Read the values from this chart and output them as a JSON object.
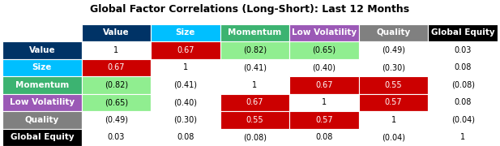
{
  "title": "Global Factor Correlations (Long-Short): Last 12 Months",
  "col_headers": [
    "Value",
    "Size",
    "Momentum",
    "Low Volatility",
    "Quality",
    "Global Equity"
  ],
  "col_header_colors": [
    "#003366",
    "#00BFFF",
    "#3CB371",
    "#9B59B6",
    "#808080",
    "#000000"
  ],
  "col_header_text_colors": [
    "#FFFFFF",
    "#FFFFFF",
    "#FFFFFF",
    "#FFFFFF",
    "#FFFFFF",
    "#FFFFFF"
  ],
  "row_headers": [
    "Value",
    "Size",
    "Momentum",
    "Low Volatility",
    "Quality",
    "Global Equity"
  ],
  "row_header_colors": [
    "#003366",
    "#00BFFF",
    "#3CB371",
    "#9B59B6",
    "#808080",
    "#000000"
  ],
  "row_header_text_colors": [
    "#FFFFFF",
    "#FFFFFF",
    "#FFFFFF",
    "#FFFFFF",
    "#FFFFFF",
    "#FFFFFF"
  ],
  "cell_values": [
    [
      "1",
      "0.67",
      "(0.82)",
      "(0.65)",
      "(0.49)",
      "0.03"
    ],
    [
      "0.67",
      "1",
      "(0.41)",
      "(0.40)",
      "(0.30)",
      "0.08"
    ],
    [
      "(0.82)",
      "(0.41)",
      "1",
      "0.67",
      "0.55",
      "(0.08)"
    ],
    [
      "(0.65)",
      "(0.40)",
      "0.67",
      "1",
      "0.57",
      "0.08"
    ],
    [
      "(0.49)",
      "(0.30)",
      "0.55",
      "0.57",
      "1",
      "(0.04)"
    ],
    [
      "0.03",
      "0.08",
      "(0.08)",
      "0.08",
      "(0.04)",
      "1"
    ]
  ],
  "cell_bg_colors": [
    [
      "#FFFFFF",
      "#CC0000",
      "#90EE90",
      "#90EE90",
      "#FFFFFF",
      "#FFFFFF"
    ],
    [
      "#CC0000",
      "#FFFFFF",
      "#FFFFFF",
      "#FFFFFF",
      "#FFFFFF",
      "#FFFFFF"
    ],
    [
      "#90EE90",
      "#FFFFFF",
      "#FFFFFF",
      "#CC0000",
      "#CC0000",
      "#FFFFFF"
    ],
    [
      "#90EE90",
      "#FFFFFF",
      "#CC0000",
      "#FFFFFF",
      "#CC0000",
      "#FFFFFF"
    ],
    [
      "#FFFFFF",
      "#FFFFFF",
      "#CC0000",
      "#CC0000",
      "#FFFFFF",
      "#FFFFFF"
    ],
    [
      "#FFFFFF",
      "#FFFFFF",
      "#FFFFFF",
      "#FFFFFF",
      "#FFFFFF",
      "#FFFFFF"
    ]
  ],
  "cell_text_colors": [
    [
      "#000000",
      "#FFFFFF",
      "#000000",
      "#000000",
      "#000000",
      "#000000"
    ],
    [
      "#FFFFFF",
      "#000000",
      "#000000",
      "#000000",
      "#000000",
      "#000000"
    ],
    [
      "#000000",
      "#000000",
      "#000000",
      "#FFFFFF",
      "#FFFFFF",
      "#000000"
    ],
    [
      "#000000",
      "#000000",
      "#FFFFFF",
      "#000000",
      "#FFFFFF",
      "#000000"
    ],
    [
      "#000000",
      "#000000",
      "#FFFFFF",
      "#FFFFFF",
      "#000000",
      "#000000"
    ],
    [
      "#000000",
      "#000000",
      "#000000",
      "#000000",
      "#000000",
      "#000000"
    ]
  ],
  "background_color": "#FFFFFF",
  "title_fontsize": 9,
  "cell_fontsize": 7,
  "header_fontsize": 7.5
}
